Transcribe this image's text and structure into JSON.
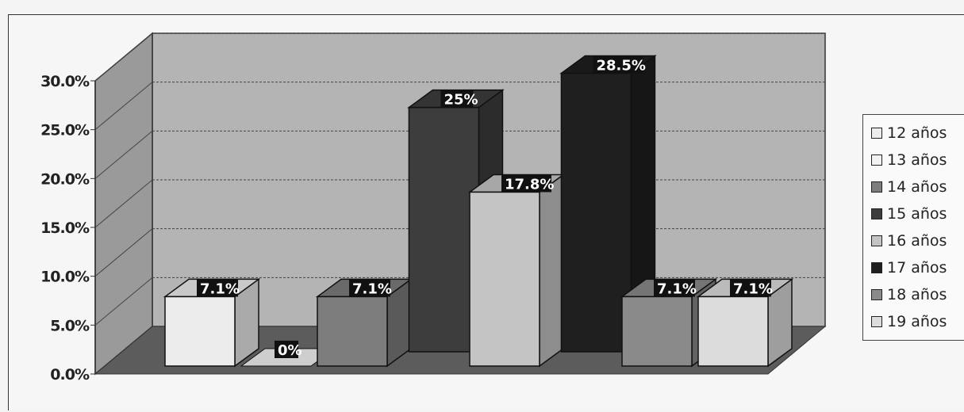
{
  "chart_data": {
    "type": "bar",
    "categories": [
      "12 años",
      "13 años",
      "14 años",
      "15 años",
      "16 años",
      "17 años",
      "18 años",
      "19 años"
    ],
    "values": [
      7.1,
      0,
      7.1,
      25,
      17.8,
      28.5,
      7.1,
      7.1
    ],
    "data_labels": [
      "7.1%",
      "0%",
      "7.1%",
      "25%",
      "17.8%",
      "28.5%",
      "7.1%",
      "7.1%"
    ],
    "y_ticks": [
      "0.0%",
      "5.0%",
      "10.0%",
      "15.0%",
      "20.0%",
      "25.0%",
      "30.0%"
    ],
    "ylim": [
      0,
      30
    ],
    "grid": true,
    "legend_position": "right",
    "colors": [
      "#ececec",
      "#f2f2f2",
      "#7d7d7d",
      "#3d3d3d",
      "#c4c4c4",
      "#1f1f1f",
      "#8a8a8a",
      "#dcdcdc"
    ]
  },
  "legend": {
    "items": [
      "12 años",
      "13 años",
      "14 años",
      "15 años",
      "16 años",
      "17 años",
      "18 años",
      "19 años"
    ]
  }
}
